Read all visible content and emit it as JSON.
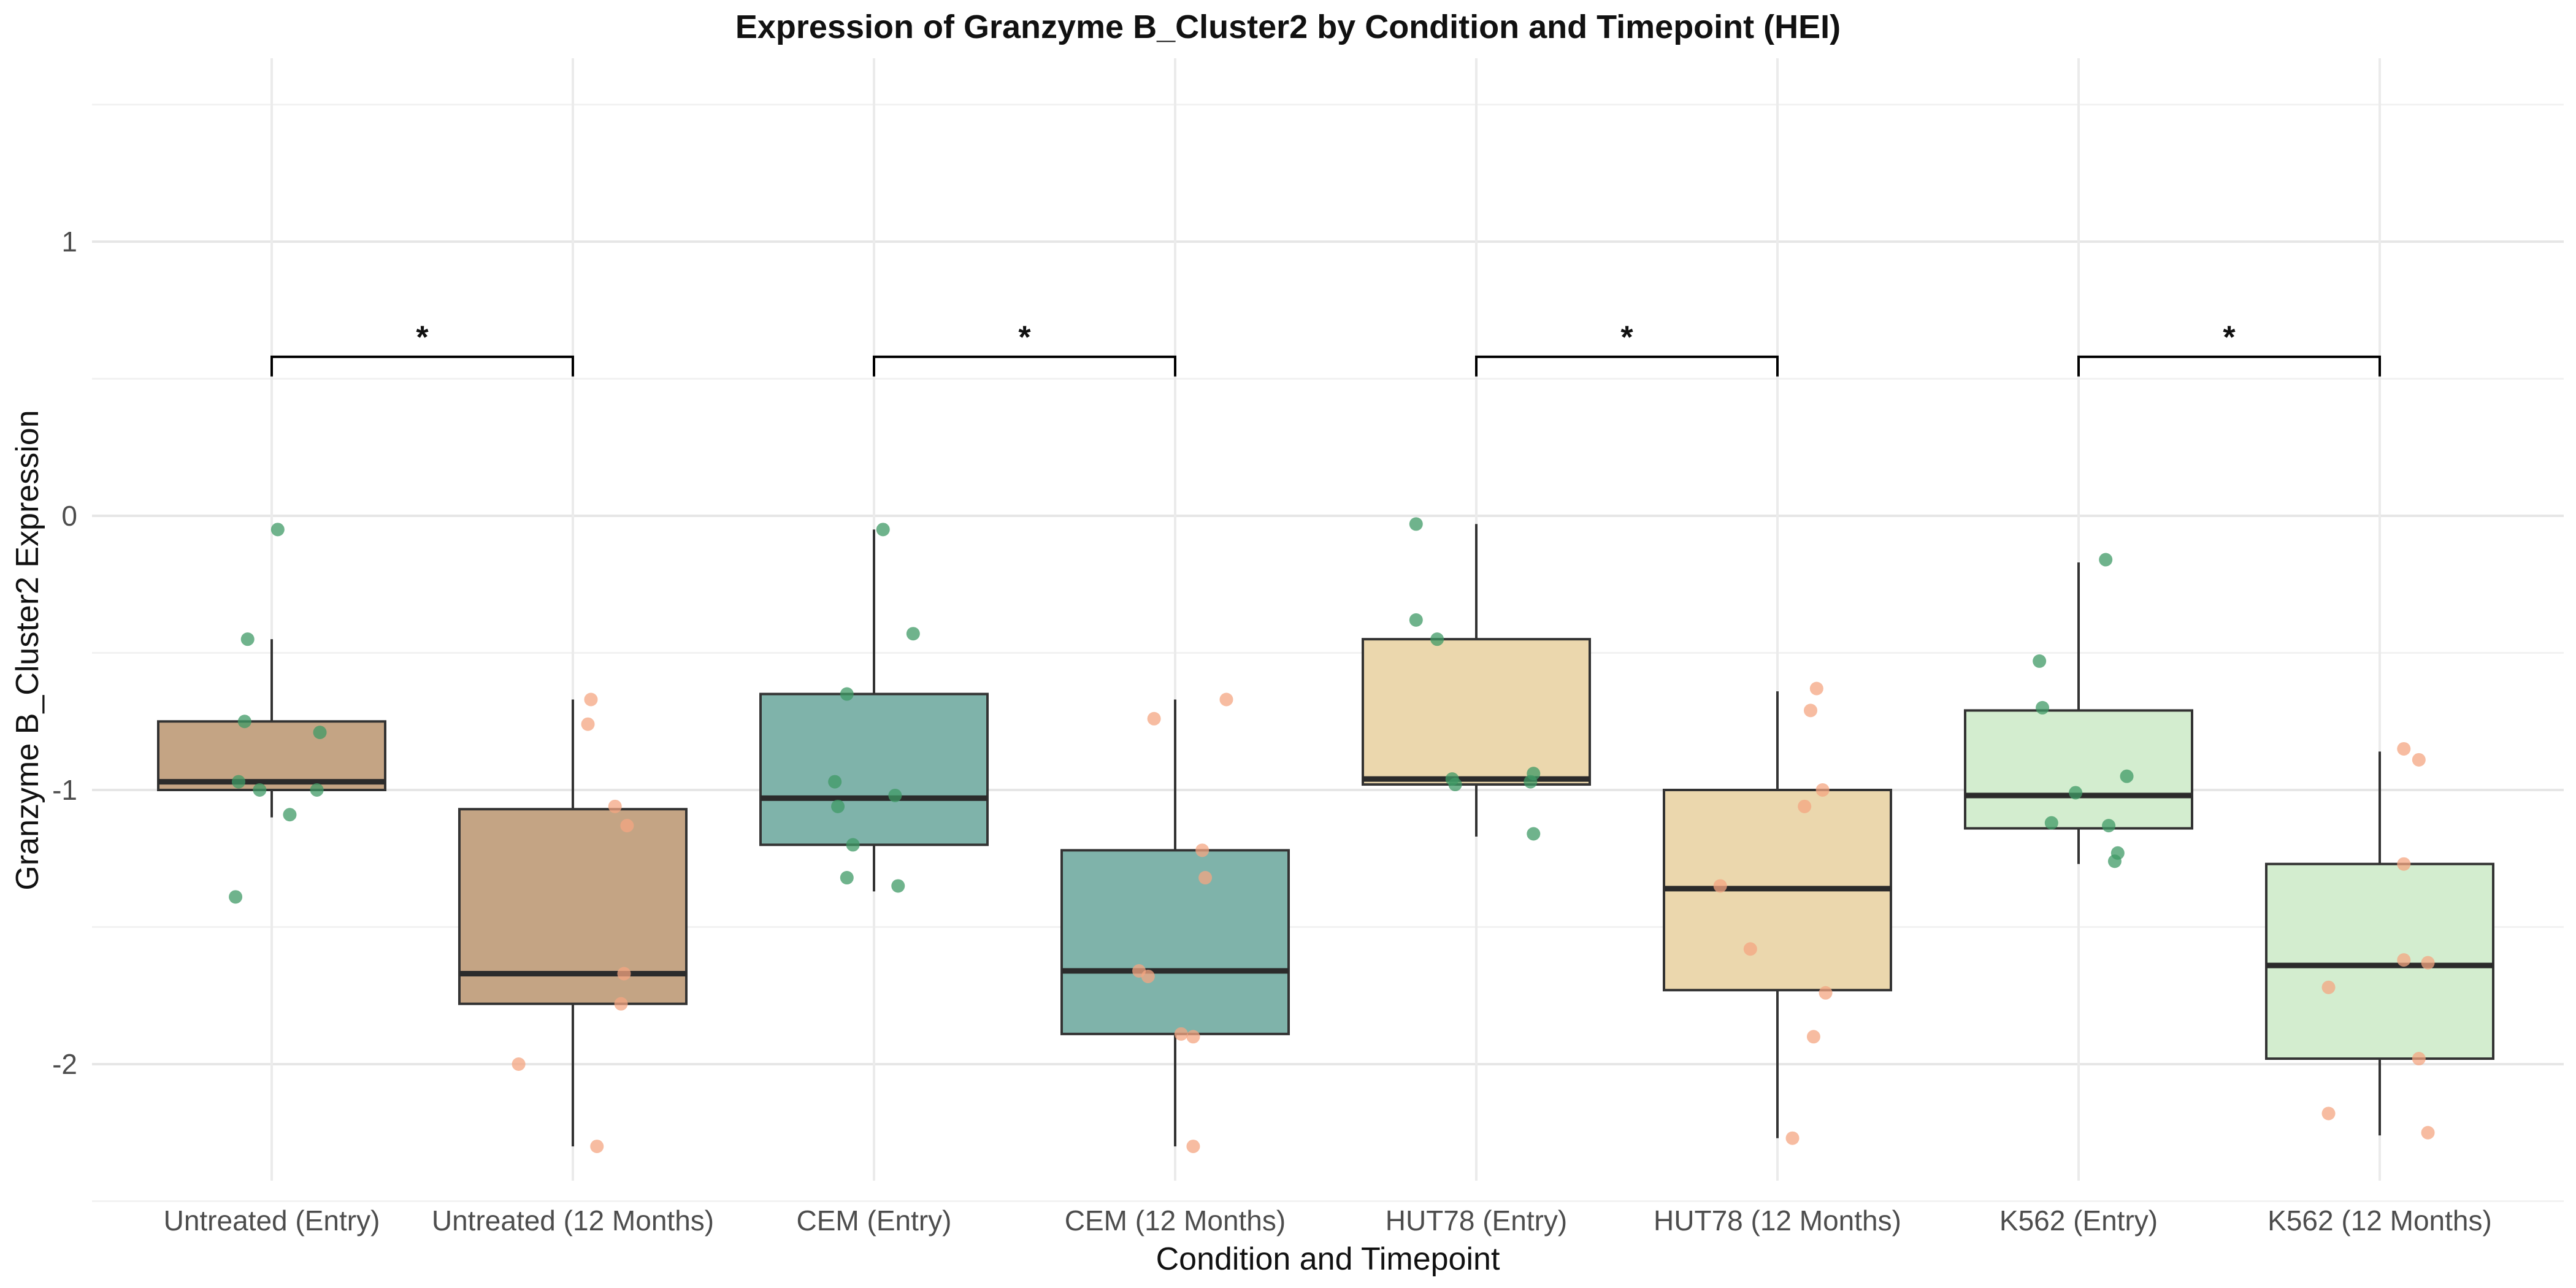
{
  "chart_data": {
    "type": "box",
    "title": "Expression of Granzyme B_Cluster2 by Condition and Timepoint (HEI)",
    "xlabel": "Condition and Timepoint",
    "ylabel": "Granzyme B_Cluster2 Expression",
    "ylim": [
      -2.5,
      1.55
    ],
    "y_ticks": [
      1,
      0,
      -1,
      -2
    ],
    "y_tick_labels": [
      "1",
      "0",
      "-1",
      "-2"
    ],
    "grid": true,
    "categories": [
      "Untreated (Entry)",
      "Untreated (12 Months)",
      "CEM (Entry)",
      "CEM (12 Months)",
      "HUT78 (Entry)",
      "HUT78 (12 Months)",
      "K562 (Entry)",
      "K562 (12 Months)"
    ],
    "boxes": [
      {
        "q1": -1.0,
        "median": -0.97,
        "q3": -0.75,
        "whisker_low": -1.1,
        "whisker_high": -0.45,
        "fill": "#c4a484"
      },
      {
        "q1": -1.78,
        "median": -1.67,
        "q3": -1.07,
        "whisker_low": -2.3,
        "whisker_high": -0.67,
        "fill": "#c4a484"
      },
      {
        "q1": -1.2,
        "median": -1.03,
        "q3": -0.65,
        "whisker_low": -1.37,
        "whisker_high": -0.05,
        "fill": "#7fb3aa"
      },
      {
        "q1": -1.89,
        "median": -1.66,
        "q3": -1.22,
        "whisker_low": -2.3,
        "whisker_high": -0.67,
        "fill": "#7fb3aa"
      },
      {
        "q1": -0.98,
        "median": -0.96,
        "q3": -0.45,
        "whisker_low": -1.17,
        "whisker_high": -0.03,
        "fill": "#ebd7ad"
      },
      {
        "q1": -1.73,
        "median": -1.36,
        "q3": -1.0,
        "whisker_low": -2.27,
        "whisker_high": -0.64,
        "fill": "#ebd7ad"
      },
      {
        "q1": -1.14,
        "median": -1.02,
        "q3": -0.71,
        "whisker_low": -1.27,
        "whisker_high": -0.17,
        "fill": "#d3edcf"
      },
      {
        "q1": -1.98,
        "median": -1.64,
        "q3": -1.27,
        "whisker_low": -2.26,
        "whisker_high": -0.86,
        "fill": "#d3edcf"
      }
    ],
    "points": [
      {
        "x_offset": [
          0.02,
          -0.08,
          -0.09,
          -0.11,
          -0.04,
          0.16,
          0.06,
          0.15,
          -0.12
        ],
        "values": [
          -0.05,
          -0.45,
          -0.75,
          -0.97,
          -1.0,
          -0.79,
          -1.09,
          -1.0,
          -1.39
        ],
        "color": "#3f9a65"
      },
      {
        "x_offset": [
          0.06,
          0.05,
          0.14,
          0.18,
          0.17,
          0.16,
          -0.18,
          0.08
        ],
        "values": [
          -0.67,
          -0.76,
          -1.06,
          -1.13,
          -1.67,
          -1.78,
          -2.0,
          -2.3
        ],
        "color": "#f4a582"
      },
      {
        "x_offset": [
          0.03,
          0.13,
          -0.09,
          -0.13,
          -0.12,
          -0.07,
          -0.09,
          0.07,
          0.08
        ],
        "values": [
          -0.05,
          -0.43,
          -0.65,
          -0.97,
          -1.06,
          -1.2,
          -1.32,
          -1.02,
          -1.35
        ],
        "color": "#3f9a65"
      },
      {
        "x_offset": [
          -0.07,
          0.17,
          0.09,
          0.1,
          -0.12,
          -0.09,
          0.02,
          0.06,
          0.06
        ],
        "values": [
          -0.74,
          -0.67,
          -1.22,
          -1.32,
          -1.66,
          -1.68,
          -1.89,
          -1.9,
          -2.3
        ],
        "color": "#f4a582"
      },
      {
        "x_offset": [
          -0.2,
          -0.2,
          -0.13,
          -0.08,
          -0.07,
          0.19,
          0.18,
          0.19
        ],
        "values": [
          -0.03,
          -0.38,
          -0.45,
          -0.96,
          -0.98,
          -0.94,
          -0.97,
          -1.16
        ],
        "color": "#3f9a65"
      },
      {
        "x_offset": [
          0.13,
          0.11,
          0.15,
          0.09,
          -0.19,
          -0.09,
          0.16,
          0.12,
          0.05
        ],
        "values": [
          -0.63,
          -0.71,
          -1.0,
          -1.06,
          -1.35,
          -1.58,
          -1.74,
          -1.9,
          -2.27
        ],
        "color": "#f4a582"
      },
      {
        "x_offset": [
          0.09,
          -0.13,
          -0.12,
          -0.01,
          -0.09,
          0.16,
          0.1,
          0.13,
          0.12
        ],
        "values": [
          -0.16,
          -0.53,
          -0.7,
          -1.01,
          -1.12,
          -0.95,
          -1.13,
          -1.23,
          -1.26
        ],
        "color": "#3f9a65"
      },
      {
        "x_offset": [
          0.08,
          0.13,
          0.08,
          0.08,
          0.16,
          -0.17,
          -0.17,
          0.13,
          0.16
        ],
        "values": [
          -0.85,
          -0.89,
          -1.27,
          -1.62,
          -1.63,
          -1.72,
          -2.18,
          -1.98,
          -2.25
        ],
        "color": "#f4a582"
      }
    ],
    "significance": [
      {
        "pair": [
          0,
          1
        ],
        "label": "*",
        "y": 0.58
      },
      {
        "pair": [
          2,
          3
        ],
        "label": "*",
        "y": 0.58
      },
      {
        "pair": [
          4,
          5
        ],
        "label": "*",
        "y": 0.58
      },
      {
        "pair": [
          6,
          7
        ],
        "label": "*",
        "y": 0.58
      }
    ]
  }
}
